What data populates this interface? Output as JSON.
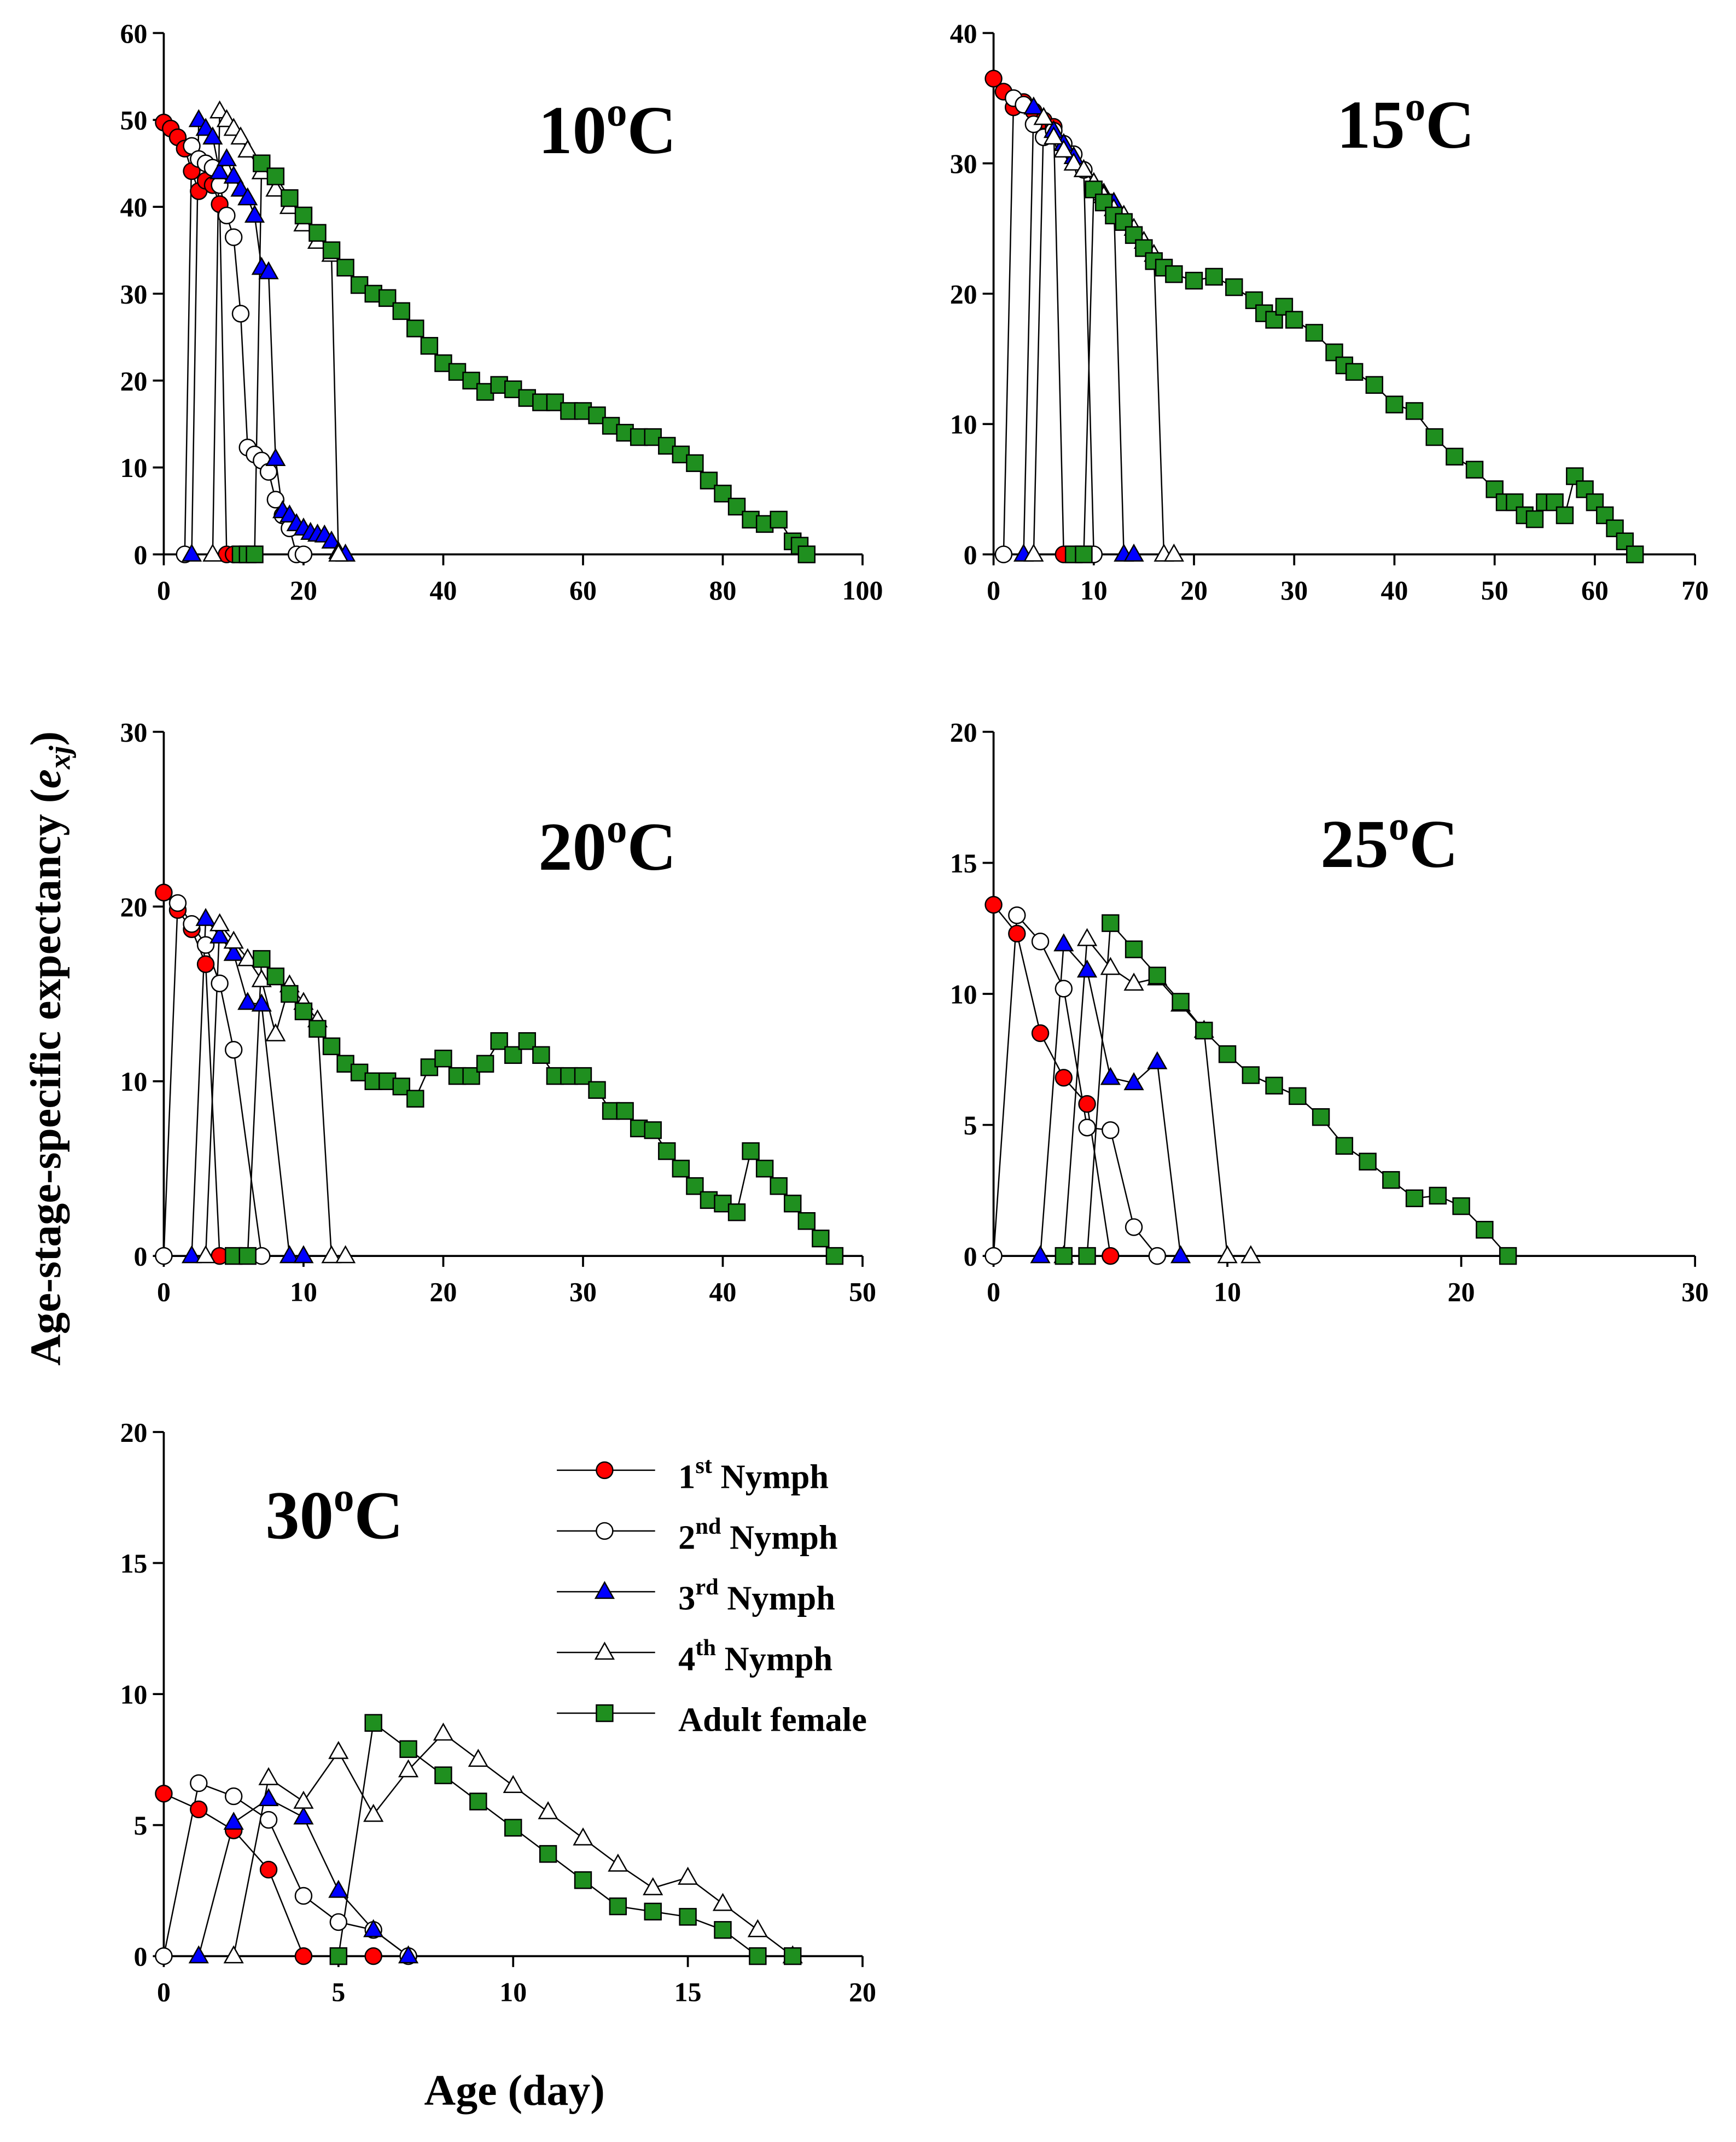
{
  "y_label": "Age-stage-specific expectancy (exj)",
  "x_label": "Age (day)",
  "chart_data": [
    {
      "type": "line",
      "title": "10oC",
      "xlim": [
        0,
        100
      ],
      "xticks": [
        0,
        20,
        40,
        60,
        80,
        100
      ],
      "ylim": [
        0,
        60
      ],
      "yticks": [
        0,
        10,
        20,
        30,
        40,
        50,
        60
      ],
      "series": [
        {
          "color": "#ff0000",
          "marker": "circle",
          "x": [
            0,
            1,
            2,
            3,
            4,
            5,
            6,
            7,
            8,
            9,
            10,
            11
          ],
          "values": [
            49.7,
            49,
            48,
            46.7,
            44.1,
            41.8,
            43,
            42.5,
            40.3,
            0,
            0,
            0
          ]
        },
        {
          "color": "#ffffff",
          "marker": "circle",
          "x": [
            3,
            4,
            5,
            6,
            7,
            8,
            9,
            10,
            11,
            12,
            13,
            14,
            15,
            16,
            17,
            18,
            19,
            20
          ],
          "values": [
            0,
            47,
            45.5,
            45,
            44.5,
            42.5,
            39,
            36.5,
            27.7,
            12.3,
            11.5,
            10.8,
            9.5,
            6.3,
            4.5,
            3,
            0,
            0
          ]
        },
        {
          "color": "#0000ff",
          "marker": "triangle",
          "x": [
            4,
            5,
            6,
            7,
            8,
            9,
            10,
            11,
            12,
            13,
            14,
            15,
            16,
            17,
            18,
            19,
            20,
            21,
            22,
            23,
            24,
            25,
            26
          ],
          "values": [
            0,
            50,
            49,
            48,
            44,
            45.5,
            43.5,
            42,
            41,
            39,
            33,
            32.5,
            11,
            5,
            4.5,
            3.5,
            3,
            2.5,
            2.3,
            2.2,
            1.5,
            0.3,
            0
          ]
        },
        {
          "color": "#ffffff",
          "marker": "triangle",
          "x": [
            7,
            8,
            9,
            10,
            11,
            12,
            14,
            16,
            18,
            20,
            22,
            24,
            25
          ],
          "values": [
            0,
            51,
            50,
            49,
            48,
            46.5,
            44,
            42,
            40,
            38,
            36,
            34.5,
            0
          ]
        },
        {
          "color": "#1f8f1f",
          "marker": "square",
          "x": [
            11,
            12,
            13,
            14,
            16,
            18,
            20,
            22,
            24,
            26,
            28,
            30,
            32,
            34,
            36,
            38,
            40,
            42,
            44,
            46,
            48,
            50,
            52,
            54,
            56,
            58,
            60,
            62,
            64,
            66,
            68,
            70,
            72,
            74,
            76,
            78,
            80,
            82,
            84,
            86,
            88,
            90,
            91,
            92
          ],
          "values": [
            0,
            0,
            0,
            45,
            43.5,
            41,
            39,
            37,
            35,
            33,
            31,
            30,
            29.5,
            28,
            26,
            24,
            22,
            21,
            20,
            18.7,
            19.5,
            19,
            18,
            17.5,
            17.5,
            16.5,
            16.5,
            16,
            14.8,
            14,
            13.5,
            13.5,
            12.5,
            11.5,
            10.5,
            8.5,
            7,
            5.5,
            4,
            3.5,
            4,
            1.5,
            1,
            0
          ]
        }
      ]
    },
    {
      "type": "line",
      "title": "15oC",
      "xlim": [
        0,
        70
      ],
      "xticks": [
        0,
        10,
        20,
        30,
        40,
        50,
        60,
        70
      ],
      "ylim": [
        0,
        40
      ],
      "yticks": [
        0,
        10,
        20,
        30,
        40
      ],
      "series": [
        {
          "color": "#ff0000",
          "marker": "circle",
          "x": [
            0,
            1,
            2,
            3,
            4,
            5,
            6,
            7
          ],
          "values": [
            36.5,
            35.5,
            34.3,
            34.7,
            34,
            33.3,
            32.8,
            0
          ]
        },
        {
          "color": "#ffffff",
          "marker": "circle",
          "x": [
            1,
            2,
            3,
            4,
            5,
            6,
            7,
            8,
            9,
            10
          ],
          "values": [
            0,
            35,
            34.5,
            33,
            32,
            32.5,
            31.5,
            30.7,
            29.5,
            0
          ]
        },
        {
          "color": "#0000ff",
          "marker": "triangle",
          "x": [
            3,
            4,
            5,
            6,
            7,
            8,
            9,
            10,
            11,
            12,
            13,
            14
          ],
          "values": [
            0,
            34.3,
            33.5,
            32.5,
            31.5,
            30.5,
            29.5,
            28.5,
            27.7,
            27,
            0,
            0
          ]
        },
        {
          "color": "#ffffff",
          "marker": "triangle",
          "x": [
            4,
            5,
            6,
            7,
            8,
            9,
            10,
            11,
            12,
            13,
            14,
            15,
            16,
            17,
            18
          ],
          "values": [
            0,
            33.5,
            32,
            31,
            30,
            29.5,
            28.5,
            27.5,
            26.5,
            26,
            25,
            24,
            23,
            0,
            0
          ]
        },
        {
          "color": "#1f8f1f",
          "marker": "square",
          "x": [
            8,
            9,
            10,
            11,
            12,
            13,
            14,
            15,
            16,
            17,
            18,
            20,
            22,
            24,
            26,
            27,
            28,
            29,
            30,
            32,
            34,
            35,
            36,
            38,
            40,
            42,
            44,
            46,
            48,
            50,
            51,
            52,
            53,
            54,
            55,
            56,
            57,
            58,
            59,
            60,
            61,
            62,
            63,
            64
          ],
          "values": [
            0,
            0,
            28,
            27,
            26,
            25.5,
            24.5,
            23.5,
            22.5,
            22,
            21.5,
            21,
            21.3,
            20.5,
            19.5,
            18.5,
            18,
            19,
            18,
            17,
            15.5,
            14.5,
            14,
            13,
            11.5,
            11,
            9,
            7.5,
            6.5,
            5,
            4,
            4,
            3,
            2.7,
            4,
            4,
            3,
            6,
            5,
            4,
            3,
            2,
            1,
            0
          ]
        }
      ]
    },
    {
      "type": "line",
      "title": "20oC",
      "xlim": [
        0,
        50
      ],
      "xticks": [
        0,
        10,
        20,
        30,
        40,
        50
      ],
      "ylim": [
        0,
        30
      ],
      "yticks": [
        0,
        10,
        20,
        30
      ],
      "series": [
        {
          "color": "#ff0000",
          "marker": "circle",
          "x": [
            0,
            1,
            2,
            3,
            4
          ],
          "values": [
            20.8,
            19.8,
            18.7,
            16.7,
            0
          ]
        },
        {
          "color": "#ffffff",
          "marker": "circle",
          "x": [
            0,
            1,
            2,
            3,
            4,
            5,
            7
          ],
          "values": [
            0,
            20.2,
            19,
            17.8,
            15.6,
            11.8,
            0
          ]
        },
        {
          "color": "#0000ff",
          "marker": "triangle",
          "x": [
            2,
            3,
            4,
            5,
            6,
            7,
            9,
            10
          ],
          "values": [
            0,
            19.3,
            18.3,
            17.3,
            14.5,
            14.4,
            0,
            0
          ]
        },
        {
          "color": "#ffffff",
          "marker": "triangle",
          "x": [
            3,
            4,
            5,
            6,
            7,
            8,
            9,
            10,
            11,
            12,
            13
          ],
          "values": [
            0,
            19,
            18,
            17,
            15.8,
            12.7,
            15.5,
            14.5,
            13.5,
            0,
            0
          ]
        },
        {
          "color": "#1f8f1f",
          "marker": "square",
          "x": [
            5,
            6,
            7,
            8,
            9,
            10,
            11,
            12,
            13,
            14,
            15,
            16,
            17,
            18,
            19,
            20,
            21,
            22,
            23,
            24,
            25,
            26,
            27,
            28,
            29,
            30,
            31,
            32,
            33,
            34,
            35,
            36,
            37,
            38,
            39,
            40,
            41,
            42,
            43,
            44,
            45,
            46,
            47,
            48
          ],
          "values": [
            0,
            0,
            17,
            16,
            15,
            14,
            13,
            12,
            11,
            10.5,
            10,
            10,
            9.7,
            9,
            10.8,
            11.3,
            10.3,
            10.3,
            11,
            12.3,
            11.5,
            12.3,
            11.5,
            10.3,
            10.3,
            10.3,
            9.5,
            8.3,
            8.3,
            7.3,
            7.2,
            6,
            5,
            4,
            3.2,
            3,
            2.5,
            6,
            5,
            4,
            3,
            2,
            1,
            0
          ]
        }
      ]
    },
    {
      "type": "line",
      "title": "25oC",
      "xlim": [
        0,
        30
      ],
      "xticks": [
        0,
        10,
        20,
        30
      ],
      "ylim": [
        0,
        20
      ],
      "yticks": [
        0,
        5,
        10,
        15,
        20
      ],
      "series": [
        {
          "color": "#ff0000",
          "marker": "circle",
          "x": [
            0,
            1,
            2,
            3,
            4,
            5
          ],
          "values": [
            13.4,
            12.3,
            8.5,
            6.8,
            5.8,
            0
          ]
        },
        {
          "color": "#ffffff",
          "marker": "circle",
          "x": [
            0,
            1,
            2,
            3,
            4,
            5,
            6,
            7
          ],
          "values": [
            0,
            13,
            12,
            10.2,
            4.9,
            4.8,
            1.1,
            0
          ]
        },
        {
          "color": "#0000ff",
          "marker": "triangle",
          "x": [
            2,
            3,
            4,
            5,
            6,
            7,
            8
          ],
          "values": [
            0,
            11.9,
            10.9,
            6.8,
            6.6,
            7.4,
            0
          ]
        },
        {
          "color": "#ffffff",
          "marker": "triangle",
          "x": [
            3,
            4,
            5,
            6,
            7,
            8,
            9,
            10,
            11
          ],
          "values": [
            0,
            12.1,
            11,
            10.4,
            10.6,
            9.6,
            8.6,
            0,
            0
          ]
        },
        {
          "color": "#1f8f1f",
          "marker": "square",
          "x": [
            3,
            4,
            5,
            6,
            7,
            8,
            9,
            10,
            11,
            12,
            13,
            14,
            15,
            16,
            17,
            18,
            19,
            20,
            21,
            22
          ],
          "values": [
            0,
            0,
            12.7,
            11.7,
            10.7,
            9.7,
            8.6,
            7.7,
            6.9,
            6.5,
            6.1,
            5.3,
            4.2,
            3.6,
            2.9,
            2.2,
            2.3,
            1.9,
            1,
            0
          ]
        }
      ]
    },
    {
      "type": "line",
      "title": "30oC",
      "xlim": [
        0,
        20
      ],
      "xticks": [
        0,
        5,
        10,
        15,
        20
      ],
      "ylim": [
        0,
        20
      ],
      "yticks": [
        0,
        5,
        10,
        15,
        20
      ],
      "series": [
        {
          "name": "1st Nymph",
          "color": "#ff0000",
          "marker": "circle",
          "x": [
            0,
            1,
            2,
            3,
            4,
            6
          ],
          "values": [
            6.2,
            5.6,
            4.8,
            3.3,
            0,
            0
          ]
        },
        {
          "name": "2nd Nymph",
          "color": "#ffffff",
          "marker": "circle",
          "x": [
            0,
            1,
            2,
            3,
            4,
            5,
            6,
            7
          ],
          "values": [
            0,
            6.6,
            6.1,
            5.2,
            2.3,
            1.3,
            1,
            0
          ]
        },
        {
          "name": "3rd Nymph",
          "color": "#0000ff",
          "marker": "triangle",
          "x": [
            1,
            2,
            3,
            4,
            5,
            6,
            7
          ],
          "values": [
            0,
            5.1,
            6,
            5.3,
            2.5,
            1,
            0
          ]
        },
        {
          "name": "4th Nymph",
          "color": "#ffffff",
          "marker": "triangle",
          "x": [
            2,
            3,
            4,
            5,
            6,
            7,
            8,
            9,
            10,
            11,
            12,
            13,
            14,
            15,
            16,
            17,
            18
          ],
          "values": [
            0,
            6.8,
            5.9,
            7.8,
            5.4,
            7.1,
            8.5,
            7.5,
            6.5,
            5.5,
            4.5,
            3.5,
            2.6,
            3,
            2,
            1,
            0
          ]
        },
        {
          "name": "Adult female",
          "color": "#1f8f1f",
          "marker": "square",
          "x": [
            5,
            6,
            7,
            8,
            9,
            10,
            11,
            12,
            13,
            14,
            15,
            16,
            17,
            18
          ],
          "values": [
            0,
            8.9,
            7.9,
            6.9,
            5.9,
            4.9,
            3.9,
            2.9,
            1.9,
            1.7,
            1.5,
            1,
            0,
            0
          ]
        }
      ]
    }
  ]
}
